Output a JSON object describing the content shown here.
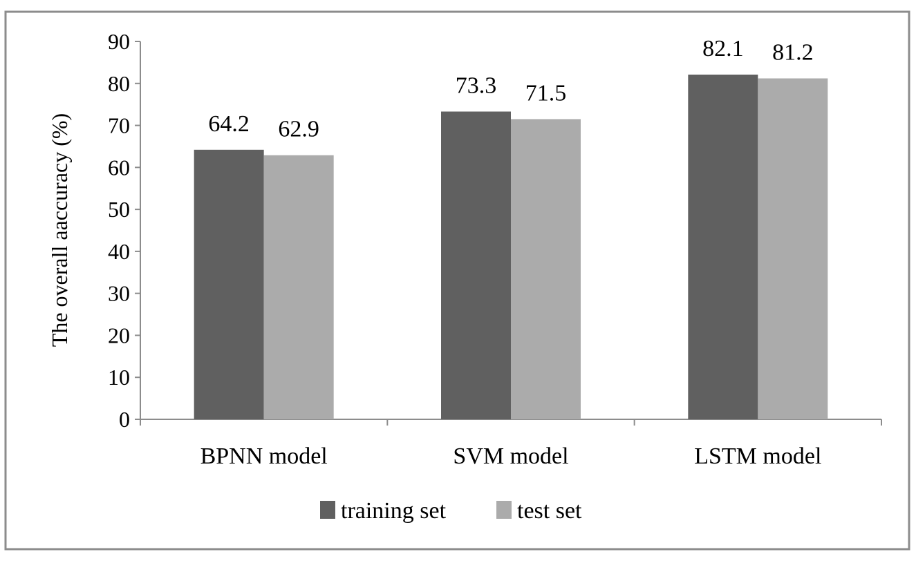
{
  "chart_data": {
    "type": "bar",
    "title": "",
    "xlabel": "",
    "ylabel": "The overall aaccuracy (%)",
    "categories": [
      "BPNN model",
      "SVM model",
      "LSTM model"
    ],
    "series": [
      {
        "name": "training set",
        "values": [
          64.2,
          73.3,
          82.1
        ],
        "color": "#606060"
      },
      {
        "name": "test set",
        "values": [
          62.9,
          71.5,
          81.2
        ],
        "color": "#ababab"
      }
    ],
    "data_labels": [
      [
        "64.2",
        "73.3",
        "82.1"
      ],
      [
        "62.9",
        "71.5",
        "81.2"
      ]
    ],
    "ylim": [
      0,
      90
    ],
    "yticks": [
      0,
      10,
      20,
      30,
      40,
      50,
      60,
      70,
      80,
      90
    ],
    "grid": false,
    "legend": "bottom",
    "frame_color": "#8c8c8c"
  }
}
